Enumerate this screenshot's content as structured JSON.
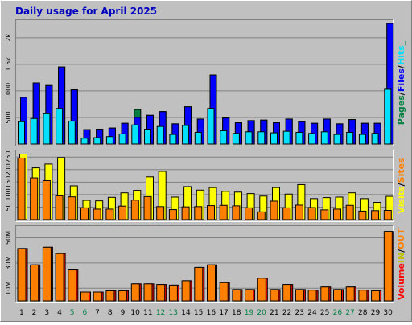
{
  "title": "Daily usage for April 2025",
  "colors": {
    "background": "#c0c0c0",
    "title": "#0000c0",
    "hits": "#008040",
    "files": "#0000ff",
    "pages": "#00e0ff",
    "visits": "#ffff00",
    "sites": "#ff8000",
    "kbytes": "#ff0000",
    "in": "#c0c000",
    "out": "#ff8000",
    "weekend": "#008040",
    "weekday": "#000000"
  },
  "chart_data": [
    {
      "type": "bar",
      "panel": "hits-files-pages",
      "categories": [
        "1",
        "2",
        "3",
        "4",
        "5",
        "6",
        "7",
        "8",
        "9",
        "10",
        "11",
        "12",
        "13",
        "14",
        "15",
        "16",
        "17",
        "18",
        "19",
        "20",
        "21",
        "22",
        "23",
        "24",
        "25",
        "26",
        "27",
        "28",
        "29",
        "30"
      ],
      "weekend_days": [
        "5",
        "6",
        "12",
        "13",
        "19",
        "20",
        "26",
        "27"
      ],
      "ylim": [
        0,
        2300
      ],
      "yticks": [
        "500",
        "1000",
        "1.5k",
        "2k"
      ],
      "ytick_values": [
        500,
        1000,
        1500,
        2000
      ],
      "axis_label_parts": [
        "Pages",
        "Files",
        "Hits"
      ],
      "axis_label_separators": [
        "/",
        "/"
      ],
      "series": [
        {
          "name": "Hits",
          "color": "#008040",
          "values": [
            880,
            1150,
            1100,
            1450,
            1020,
            270,
            280,
            300,
            390,
            650,
            540,
            610,
            380,
            700,
            470,
            1300,
            490,
            400,
            440,
            450,
            400,
            470,
            420,
            390,
            470,
            380,
            460,
            390,
            390,
            2270
          ]
        },
        {
          "name": "Files",
          "color": "#0000ff",
          "values": [
            880,
            1150,
            1100,
            1450,
            1020,
            270,
            280,
            300,
            390,
            500,
            540,
            610,
            380,
            700,
            470,
            1300,
            490,
            400,
            440,
            450,
            400,
            470,
            420,
            390,
            470,
            380,
            460,
            390,
            390,
            2270
          ]
        },
        {
          "name": "Pages",
          "color": "#00e0ff",
          "values": [
            420,
            480,
            570,
            670,
            430,
            110,
            120,
            140,
            190,
            360,
            280,
            330,
            180,
            350,
            220,
            670,
            250,
            200,
            230,
            230,
            210,
            240,
            220,
            200,
            230,
            180,
            220,
            180,
            200,
            1030
          ]
        }
      ]
    },
    {
      "type": "bar",
      "panel": "visits-sites",
      "categories": [
        "1",
        "2",
        "3",
        "4",
        "5",
        "6",
        "7",
        "8",
        "9",
        "10",
        "11",
        "12",
        "13",
        "14",
        "15",
        "16",
        "17",
        "18",
        "19",
        "20",
        "21",
        "22",
        "23",
        "24",
        "25",
        "26",
        "27",
        "28",
        "29",
        "30"
      ],
      "ylim": [
        0,
        270
      ],
      "yticks": [
        "50",
        "100",
        "150",
        "200",
        "250"
      ],
      "ytick_values": [
        50,
        100,
        150,
        200,
        250
      ],
      "axis_label_parts": [
        "Visits",
        "Sites"
      ],
      "axis_label_separators": [
        "/"
      ],
      "series": [
        {
          "name": "Visits",
          "color": "#ffff00",
          "values": [
            262,
            207,
            222,
            248,
            135,
            77,
            75,
            89,
            107,
            117,
            171,
            193,
            90,
            132,
            118,
            128,
            113,
            110,
            104,
            94,
            128,
            102,
            140,
            84,
            88,
            90,
            107,
            84,
            69,
            93
          ]
        },
        {
          "name": "Sites",
          "color": "#ff8000",
          "values": [
            246,
            167,
            156,
            95,
            91,
            47,
            42,
            42,
            54,
            78,
            92,
            52,
            40,
            51,
            52,
            56,
            57,
            55,
            47,
            31,
            74,
            47,
            58,
            48,
            39,
            42,
            57,
            34,
            36,
            37
          ]
        }
      ]
    },
    {
      "type": "bar",
      "panel": "volume",
      "categories": [
        "1",
        "2",
        "3",
        "4",
        "5",
        "6",
        "7",
        "8",
        "9",
        "10",
        "11",
        "12",
        "13",
        "14",
        "15",
        "16",
        "17",
        "18",
        "19",
        "20",
        "21",
        "22",
        "23",
        "24",
        "25",
        "26",
        "27",
        "28",
        "29",
        "30"
      ],
      "ylim": [
        0,
        58
      ],
      "yticks": [
        "10M",
        "30M",
        "50M"
      ],
      "ytick_values": [
        10,
        30,
        50
      ],
      "axis_label_parts": [
        "Volume",
        "IN",
        "OUT"
      ],
      "axis_label_separators": [
        "",
        "/"
      ],
      "series": [
        {
          "name": "Volume",
          "color": "#ff0000",
          "values": [
            41.5,
            28.5,
            42.5,
            37.5,
            24.5,
            7,
            7,
            8,
            8,
            13.5,
            13.5,
            13,
            12.5,
            16,
            26.5,
            28.5,
            14.5,
            9,
            9,
            18,
            9,
            13,
            9,
            8.5,
            11,
            9,
            11,
            8.5,
            8,
            55
          ]
        },
        {
          "name": "IN",
          "color": "#c0c000",
          "values": [
            0,
            0,
            0,
            0,
            0,
            0,
            0,
            0,
            0,
            0,
            0,
            0,
            0,
            0,
            0,
            0,
            0,
            0,
            0,
            0,
            0,
            0,
            0,
            0,
            0,
            0,
            0,
            0,
            0,
            0
          ]
        },
        {
          "name": "OUT",
          "color": "#ff8000",
          "values": [
            41.5,
            28.5,
            42.5,
            37.5,
            24.5,
            7,
            7,
            8,
            8,
            13.5,
            13.5,
            13,
            12.5,
            16,
            26.5,
            28.5,
            14.5,
            9,
            9,
            18,
            9,
            13,
            9,
            8.5,
            11,
            9,
            11,
            8.5,
            8,
            55
          ]
        }
      ]
    }
  ]
}
